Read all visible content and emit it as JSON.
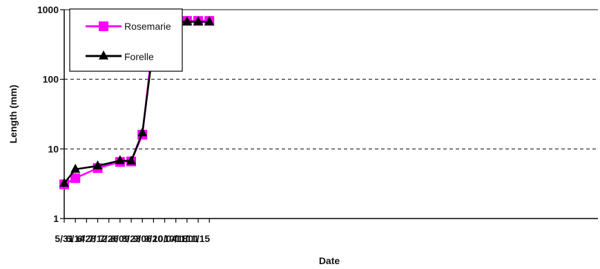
{
  "chart_data": {
    "type": "line",
    "xlabel": "Date",
    "ylabel": "Length (mm)",
    "yscale": "log",
    "ylim": [
      1,
      1000
    ],
    "ytick_labels": [
      "1",
      "10",
      "100",
      "1000"
    ],
    "yticks": [
      1,
      10,
      100,
      1000
    ],
    "grid": "horizontal dashed",
    "legend_position": "top-left",
    "categories": [
      "5/31",
      "6/14",
      "6/28",
      "7/12",
      "7/26",
      "8/09",
      "8/23",
      "9/06",
      "9/20",
      "10/04",
      "10/18",
      "11/01",
      "11/15"
    ],
    "series": [
      {
        "name": "Rosemarie",
        "color": "#ff00ff",
        "marker": "square",
        "points": [
          {
            "x": "5/31",
            "y": 3.1
          },
          {
            "x": "6/14",
            "y": 3.8
          },
          {
            "x": "7/12",
            "y": 5.3
          },
          {
            "x": "8/09",
            "y": 6.5
          },
          {
            "x": "8/23",
            "y": 6.6
          },
          {
            "x": "9/06",
            "y": 16
          },
          {
            "x": "9/20",
            "y": 410
          },
          {
            "x": "10/04",
            "y": 690
          },
          {
            "x": "10/18",
            "y": 690
          },
          {
            "x": "11/01",
            "y": 690
          },
          {
            "x": "11/15",
            "y": 690
          },
          {
            "x": "11/29",
            "y": 690
          }
        ]
      },
      {
        "name": "Forelle",
        "color": "#000000",
        "marker": "triangle",
        "points": [
          {
            "x": "5/31",
            "y": 3.2
          },
          {
            "x": "6/14",
            "y": 5.1
          },
          {
            "x": "7/12",
            "y": 5.7
          },
          {
            "x": "8/09",
            "y": 6.8
          },
          {
            "x": "8/23",
            "y": 6.7
          },
          {
            "x": "9/06",
            "y": 17
          },
          {
            "x": "9/20",
            "y": 310
          },
          {
            "x": "10/04",
            "y": 660
          },
          {
            "x": "10/18",
            "y": 670
          },
          {
            "x": "11/01",
            "y": 670
          },
          {
            "x": "11/15",
            "y": 670
          },
          {
            "x": "11/29",
            "y": 670
          }
        ]
      }
    ]
  }
}
